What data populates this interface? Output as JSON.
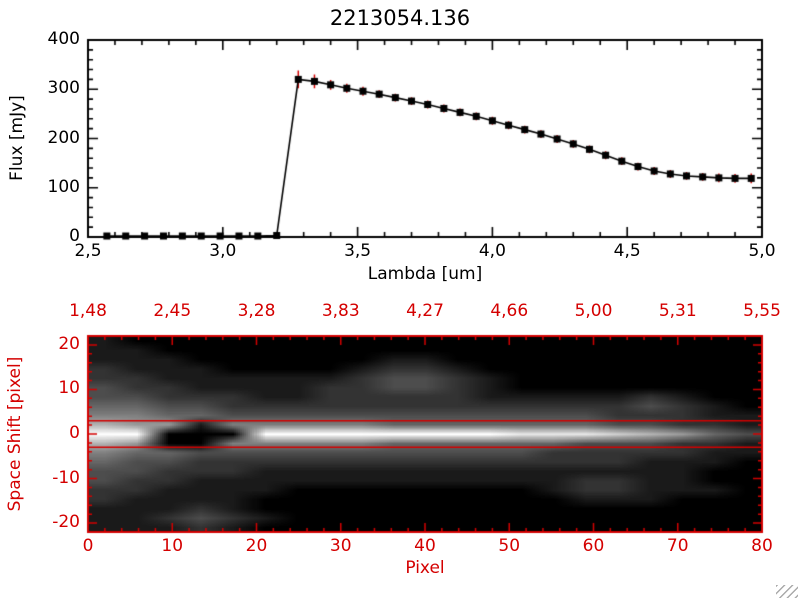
{
  "colors": {
    "axis": "#000000",
    "data": "#000000",
    "red": "#d40000",
    "background": "#ffffff"
  },
  "chart_data": [
    {
      "type": "line",
      "title": "2213054.136",
      "xlabel": "Lambda [um]",
      "ylabel": "Flux [mJy]",
      "xlim": [
        2.5,
        5.0
      ],
      "ylim": [
        0,
        400
      ],
      "marker": "filled-square",
      "error_bar_color": "#d40000",
      "x_ticks": [
        {
          "v": 2.5,
          "label": "2,5"
        },
        {
          "v": 3.0,
          "label": "3,0"
        },
        {
          "v": 3.5,
          "label": "3,5"
        },
        {
          "v": 4.0,
          "label": "4,0"
        },
        {
          "v": 4.5,
          "label": "4,5"
        },
        {
          "v": 5.0,
          "label": "5,0"
        }
      ],
      "y_ticks": [
        {
          "v": 0,
          "label": "0"
        },
        {
          "v": 100,
          "label": "100"
        },
        {
          "v": 200,
          "label": "200"
        },
        {
          "v": 300,
          "label": "300"
        },
        {
          "v": 400,
          "label": "400"
        }
      ],
      "x": [
        2.57,
        2.64,
        2.71,
        2.78,
        2.85,
        2.92,
        2.99,
        3.06,
        3.13,
        3.2,
        3.28,
        3.34,
        3.4,
        3.46,
        3.52,
        3.58,
        3.64,
        3.7,
        3.76,
        3.82,
        3.88,
        3.94,
        4.0,
        4.06,
        4.12,
        4.18,
        4.24,
        4.3,
        4.36,
        4.42,
        4.48,
        4.54,
        4.6,
        4.66,
        4.72,
        4.78,
        4.84,
        4.9,
        4.96
      ],
      "flux": [
        2,
        2,
        2,
        2,
        2,
        2,
        2,
        2,
        2,
        3,
        320,
        316,
        309,
        302,
        296,
        290,
        283,
        276,
        269,
        261,
        253,
        245,
        236,
        227,
        218,
        209,
        199,
        189,
        178,
        166,
        154,
        143,
        134,
        128,
        124,
        122,
        120,
        119,
        119
      ],
      "err": [
        3,
        3,
        3,
        3,
        3,
        3,
        3,
        3,
        3,
        3,
        18,
        14,
        10,
        9,
        9,
        8,
        8,
        8,
        8,
        8,
        8,
        8,
        8,
        8,
        8,
        8,
        8,
        8,
        8,
        8,
        8,
        8,
        8,
        8,
        8,
        8,
        9,
        9,
        10
      ]
    },
    {
      "type": "heatmap",
      "xlabel": "Pixel",
      "ylabel": "Space Shift [pixel]",
      "xlim": [
        0,
        80
      ],
      "ylim": [
        -22,
        22
      ],
      "aperture_lines": [
        3,
        -3
      ],
      "intensity_scale": [
        0,
        10
      ],
      "top_ticks": [
        {
          "v": 0,
          "label": "1,48"
        },
        {
          "v": 10,
          "label": "2,45"
        },
        {
          "v": 20,
          "label": "3,28"
        },
        {
          "v": 30,
          "label": "3,83"
        },
        {
          "v": 40,
          "label": "4,27"
        },
        {
          "v": 50,
          "label": "4,66"
        },
        {
          "v": 60,
          "label": "5,00"
        },
        {
          "v": 70,
          "label": "5,31"
        },
        {
          "v": 80,
          "label": "5,55"
        }
      ],
      "x_ticks": [
        {
          "v": 0,
          "label": "0"
        },
        {
          "v": 10,
          "label": "10"
        },
        {
          "v": 20,
          "label": "20"
        },
        {
          "v": 30,
          "label": "30"
        },
        {
          "v": 40,
          "label": "40"
        },
        {
          "v": 50,
          "label": "50"
        },
        {
          "v": 60,
          "label": "60"
        },
        {
          "v": 70,
          "label": "70"
        },
        {
          "v": 80,
          "label": "80"
        }
      ],
      "y_ticks": [
        {
          "v": 20,
          "label": "20"
        },
        {
          "v": 10,
          "label": "10"
        },
        {
          "v": 0,
          "label": "0"
        },
        {
          "v": -10,
          "label": "-10"
        },
        {
          "v": -20,
          "label": "-20"
        }
      ],
      "grid_y_top": 20,
      "grid_y_bottom": -20,
      "grid": [
        [
          1,
          0,
          0,
          0,
          0,
          0,
          0,
          0,
          0,
          0,
          0,
          0,
          0,
          0,
          0,
          0,
          0,
          0,
          0,
          0,
          0
        ],
        [
          1,
          1,
          0,
          0,
          0,
          0,
          0,
          0,
          0,
          0,
          0,
          0,
          0,
          0,
          0,
          0,
          0,
          0,
          0,
          0,
          0
        ],
        [
          1,
          1,
          1,
          0,
          0,
          0,
          0,
          0,
          0,
          1,
          1,
          0,
          0,
          0,
          0,
          0,
          0,
          0,
          0,
          0,
          0
        ],
        [
          2,
          1,
          1,
          1,
          0,
          0,
          0,
          0,
          1,
          2,
          2,
          1,
          0,
          0,
          0,
          0,
          0,
          0,
          0,
          0,
          0
        ],
        [
          2,
          2,
          1,
          1,
          1,
          1,
          1,
          1,
          2,
          3,
          3,
          2,
          1,
          0,
          0,
          0,
          0,
          0,
          0,
          0,
          0
        ],
        [
          3,
          2,
          2,
          1,
          1,
          1,
          1,
          2,
          2,
          3,
          3,
          2,
          1,
          0,
          0,
          0,
          0,
          0,
          0,
          0,
          0
        ],
        [
          3,
          3,
          2,
          2,
          2,
          1,
          1,
          2,
          2,
          2,
          2,
          2,
          1,
          1,
          1,
          1,
          1,
          2,
          1,
          0,
          0
        ],
        [
          4,
          4,
          3,
          3,
          2,
          2,
          2,
          2,
          2,
          2,
          2,
          2,
          2,
          2,
          2,
          2,
          2,
          3,
          2,
          1,
          0
        ],
        [
          5,
          5,
          4,
          4,
          3,
          3,
          3,
          3,
          3,
          3,
          3,
          3,
          3,
          3,
          3,
          3,
          2,
          2,
          2,
          1,
          1
        ],
        [
          7,
          6,
          6,
          1,
          5,
          5,
          5,
          5,
          5,
          4,
          4,
          4,
          4,
          4,
          4,
          4,
          3,
          3,
          2,
          2,
          1
        ],
        [
          10,
          10,
          0,
          0,
          0,
          10,
          10,
          10,
          10,
          10,
          10,
          10,
          10,
          9,
          9,
          9,
          8,
          7,
          6,
          4,
          3
        ],
        [
          7,
          6,
          0,
          0,
          5,
          5,
          5,
          5,
          5,
          4,
          4,
          4,
          4,
          4,
          4,
          3,
          3,
          3,
          2,
          2,
          1
        ],
        [
          5,
          4,
          4,
          3,
          3,
          3,
          3,
          3,
          3,
          3,
          3,
          3,
          3,
          3,
          2,
          2,
          2,
          2,
          2,
          1,
          1
        ],
        [
          4,
          3,
          3,
          2,
          2,
          2,
          2,
          2,
          2,
          2,
          2,
          2,
          2,
          2,
          2,
          2,
          2,
          1,
          1,
          1,
          0
        ],
        [
          3,
          3,
          2,
          2,
          2,
          1,
          1,
          1,
          1,
          1,
          1,
          1,
          1,
          1,
          1,
          1,
          1,
          1,
          1,
          0,
          0
        ],
        [
          3,
          2,
          2,
          1,
          1,
          1,
          1,
          1,
          1,
          1,
          1,
          1,
          1,
          1,
          1,
          2,
          2,
          1,
          1,
          0,
          0
        ],
        [
          2,
          2,
          1,
          1,
          1,
          1,
          0,
          0,
          0,
          0,
          0,
          0,
          0,
          0,
          1,
          2,
          2,
          1,
          1,
          1,
          0
        ],
        [
          2,
          1,
          1,
          1,
          1,
          0,
          0,
          0,
          0,
          0,
          0,
          0,
          0,
          0,
          0,
          1,
          1,
          1,
          0,
          0,
          0
        ],
        [
          1,
          1,
          1,
          2,
          1,
          0,
          0,
          0,
          0,
          0,
          0,
          0,
          0,
          0,
          0,
          0,
          0,
          0,
          0,
          0,
          0
        ],
        [
          1,
          1,
          2,
          3,
          2,
          1,
          0,
          0,
          0,
          0,
          0,
          0,
          0,
          0,
          0,
          0,
          0,
          0,
          0,
          0,
          0
        ],
        [
          1,
          1,
          1,
          2,
          1,
          0,
          0,
          0,
          0,
          0,
          0,
          0,
          0,
          0,
          0,
          0,
          0,
          0,
          0,
          0,
          0
        ]
      ]
    }
  ]
}
